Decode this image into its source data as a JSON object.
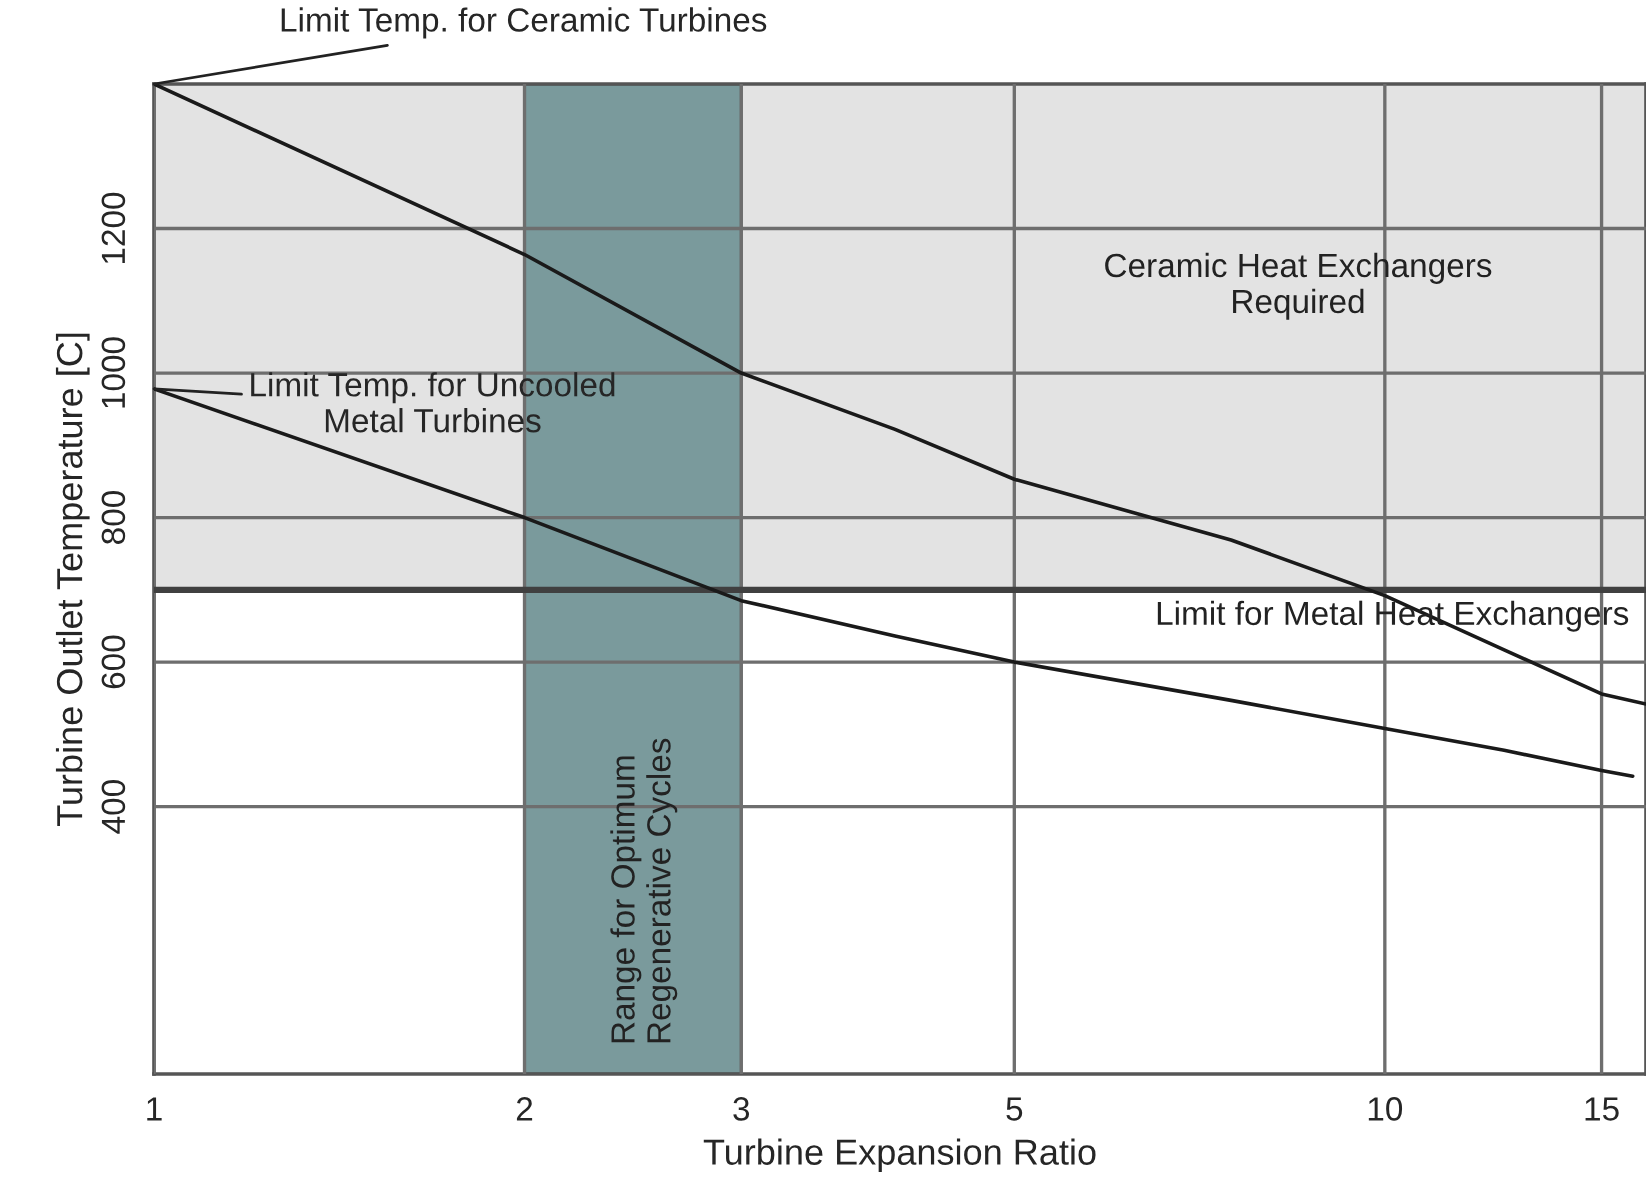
{
  "chart_data": {
    "type": "line",
    "xlabel": "Turbine Expansion Ratio",
    "ylabel": "Turbine Outlet Temperature [C]",
    "xlim": [
      1,
      16.3
    ],
    "ylim": [
      30,
      1400
    ],
    "xticks": [
      1,
      2,
      3,
      5,
      10,
      15
    ],
    "yticks": [
      400,
      600,
      800,
      1000,
      1200
    ],
    "grid": true,
    "line_style": "solid",
    "log": "x",
    "series": [
      {
        "color": "#1a1a1a",
        "x": [
          1,
          2,
          3,
          4,
          5,
          7.5,
          10,
          12.5,
          15,
          16.3
        ],
        "values": [
          1400,
          1164,
          1000,
          922,
          853,
          769,
          692,
          617,
          556,
          542
        ]
      },
      {
        "color": "#1a1a1a",
        "x": [
          1,
          2,
          3,
          4,
          5,
          7.5,
          10,
          12.5,
          15,
          15.9
        ],
        "values": [
          978,
          800,
          685,
          636,
          600,
          547,
          508,
          478,
          450,
          442
        ]
      }
    ],
    "bands": [
      {
        "axis": "y",
        "from": 700,
        "to": 1400,
        "label": "Ceramic Heat Exchangers\nRequired",
        "color": "#e3e3e3"
      },
      {
        "axis": "x",
        "from": 2,
        "to": 3,
        "label": "Range for Optimum\nRegenerative Cycles",
        "color": "#7a9a9c"
      }
    ],
    "ref_lines": [
      {
        "axis": "y",
        "value": 700,
        "label": "Limit for Metal Heat Exchangers",
        "color": "#404040"
      }
    ],
    "annotations": [
      {
        "text": "Limit Temp. for Ceramic Turbines",
        "x": 1,
        "y": 1400
      },
      {
        "text": "Limit Temp. for Uncooled\nMetal Turbines",
        "x": 1,
        "y": 978
      }
    ]
  }
}
